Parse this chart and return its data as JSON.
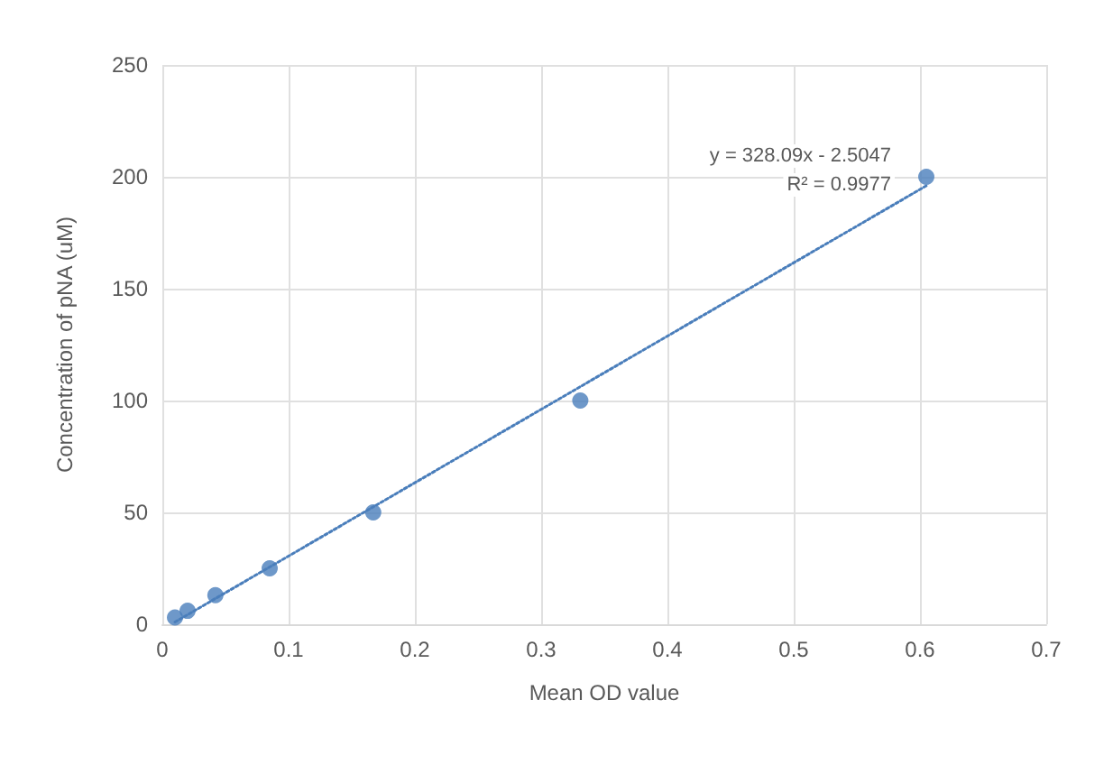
{
  "chart_data": {
    "type": "scatter",
    "xlabel": "Mean OD value",
    "ylabel": "Concentration of pNA (uM)",
    "series": [
      {
        "type": "scatter",
        "color": "#4a7ebb",
        "marker": "circle",
        "x": [
          0.01,
          0.02,
          0.042,
          0.085,
          0.167,
          0.331,
          0.605
        ],
        "values": [
          3,
          6,
          13,
          25,
          50,
          100,
          200
        ]
      },
      {
        "type": "line",
        "color": "#4a7ebb",
        "line_style": "dotted",
        "marker": "none",
        "x": [
          0.01,
          0.605
        ],
        "values": [
          1,
          196
        ]
      }
    ],
    "xlim": [
      0,
      0.7
    ],
    "xticks": [
      0,
      0.1,
      0.2,
      0.3,
      0.4,
      0.5,
      0.6,
      0.7
    ],
    "ylim": [
      0,
      250
    ],
    "yticks": [
      0,
      50,
      100,
      150,
      200,
      250
    ],
    "grid": true,
    "annotations": [
      "y = 328.09x - 2.5047",
      "R² = 0.9977"
    ]
  }
}
